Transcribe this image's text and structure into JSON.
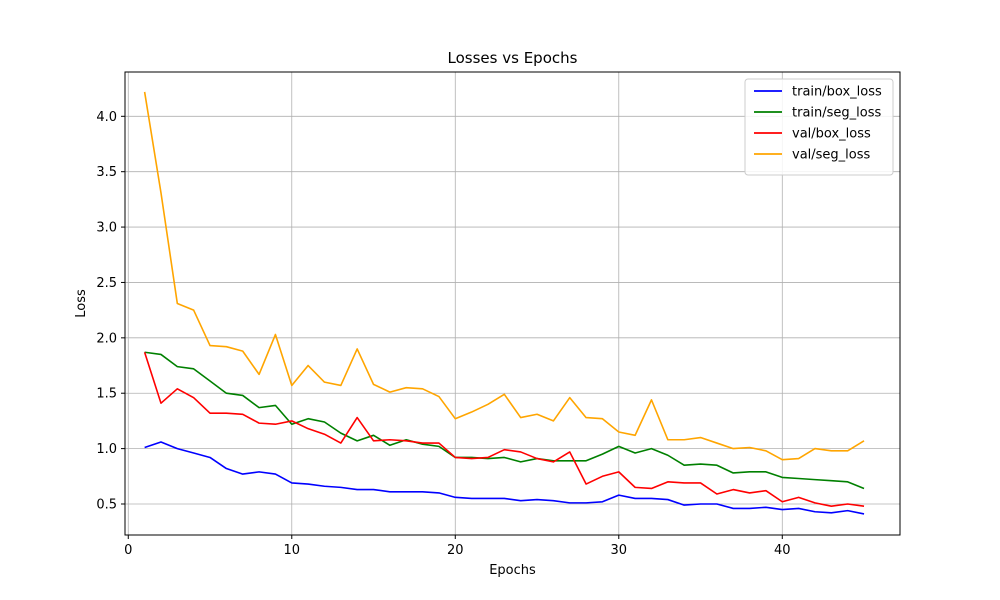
{
  "chart_data": {
    "type": "line",
    "title": "Losses vs Epochs",
    "xlabel": "Epochs",
    "ylabel": "Loss",
    "xlim": [
      -0.2,
      47.2
    ],
    "ylim": [
      0.22,
      4.4
    ],
    "xticks": [
      0,
      10,
      20,
      30,
      40
    ],
    "yticks": [
      0.5,
      1.0,
      1.5,
      2.0,
      2.5,
      3.0,
      3.5,
      4.0
    ],
    "grid": true,
    "legend_position": "top-right",
    "x": [
      1,
      2,
      3,
      4,
      5,
      6,
      7,
      8,
      9,
      10,
      11,
      12,
      13,
      14,
      15,
      16,
      17,
      18,
      19,
      20,
      21,
      22,
      23,
      24,
      25,
      26,
      27,
      28,
      29,
      30,
      31,
      32,
      33,
      34,
      35,
      36,
      37,
      38,
      39,
      40,
      41,
      42,
      43,
      44,
      45
    ],
    "series": [
      {
        "name": "train/box_loss",
        "color": "#0000ff",
        "values": [
          1.01,
          1.06,
          1.0,
          0.96,
          0.92,
          0.82,
          0.77,
          0.79,
          0.77,
          0.69,
          0.68,
          0.66,
          0.65,
          0.63,
          0.63,
          0.61,
          0.61,
          0.61,
          0.6,
          0.56,
          0.55,
          0.55,
          0.55,
          0.53,
          0.54,
          0.53,
          0.51,
          0.51,
          0.52,
          0.58,
          0.55,
          0.55,
          0.54,
          0.49,
          0.5,
          0.5,
          0.46,
          0.46,
          0.47,
          0.45,
          0.46,
          0.43,
          0.42,
          0.44,
          0.41
        ]
      },
      {
        "name": "train/seg_loss",
        "color": "#008000",
        "values": [
          1.87,
          1.85,
          1.74,
          1.72,
          1.61,
          1.5,
          1.48,
          1.37,
          1.39,
          1.22,
          1.27,
          1.24,
          1.14,
          1.07,
          1.12,
          1.03,
          1.08,
          1.04,
          1.02,
          0.92,
          0.92,
          0.91,
          0.92,
          0.88,
          0.91,
          0.89,
          0.89,
          0.89,
          0.95,
          1.02,
          0.96,
          1.0,
          0.94,
          0.85,
          0.86,
          0.85,
          0.78,
          0.79,
          0.79,
          0.74,
          0.73,
          0.72,
          0.71,
          0.7,
          0.64
        ]
      },
      {
        "name": "val/box_loss",
        "color": "#ff0000",
        "values": [
          1.87,
          1.41,
          1.54,
          1.46,
          1.32,
          1.32,
          1.31,
          1.23,
          1.22,
          1.25,
          1.18,
          1.13,
          1.05,
          1.28,
          1.07,
          1.08,
          1.07,
          1.05,
          1.05,
          0.92,
          0.91,
          0.92,
          0.99,
          0.97,
          0.91,
          0.88,
          0.97,
          0.68,
          0.75,
          0.79,
          0.65,
          0.64,
          0.7,
          0.69,
          0.69,
          0.59,
          0.63,
          0.6,
          0.62,
          0.52,
          0.56,
          0.51,
          0.48,
          0.5,
          0.48
        ]
      },
      {
        "name": "val/seg_loss",
        "color": "#ffa500",
        "values": [
          4.22,
          3.31,
          2.31,
          2.25,
          1.93,
          1.92,
          1.88,
          1.67,
          2.03,
          1.57,
          1.75,
          1.6,
          1.57,
          1.9,
          1.58,
          1.51,
          1.55,
          1.54,
          1.47,
          1.27,
          1.33,
          1.4,
          1.49,
          1.28,
          1.31,
          1.25,
          1.46,
          1.28,
          1.27,
          1.15,
          1.12,
          1.44,
          1.08,
          1.08,
          1.1,
          1.05,
          1.0,
          1.01,
          0.98,
          0.9,
          0.91,
          1.0,
          0.98,
          0.98,
          1.07
        ]
      }
    ]
  }
}
